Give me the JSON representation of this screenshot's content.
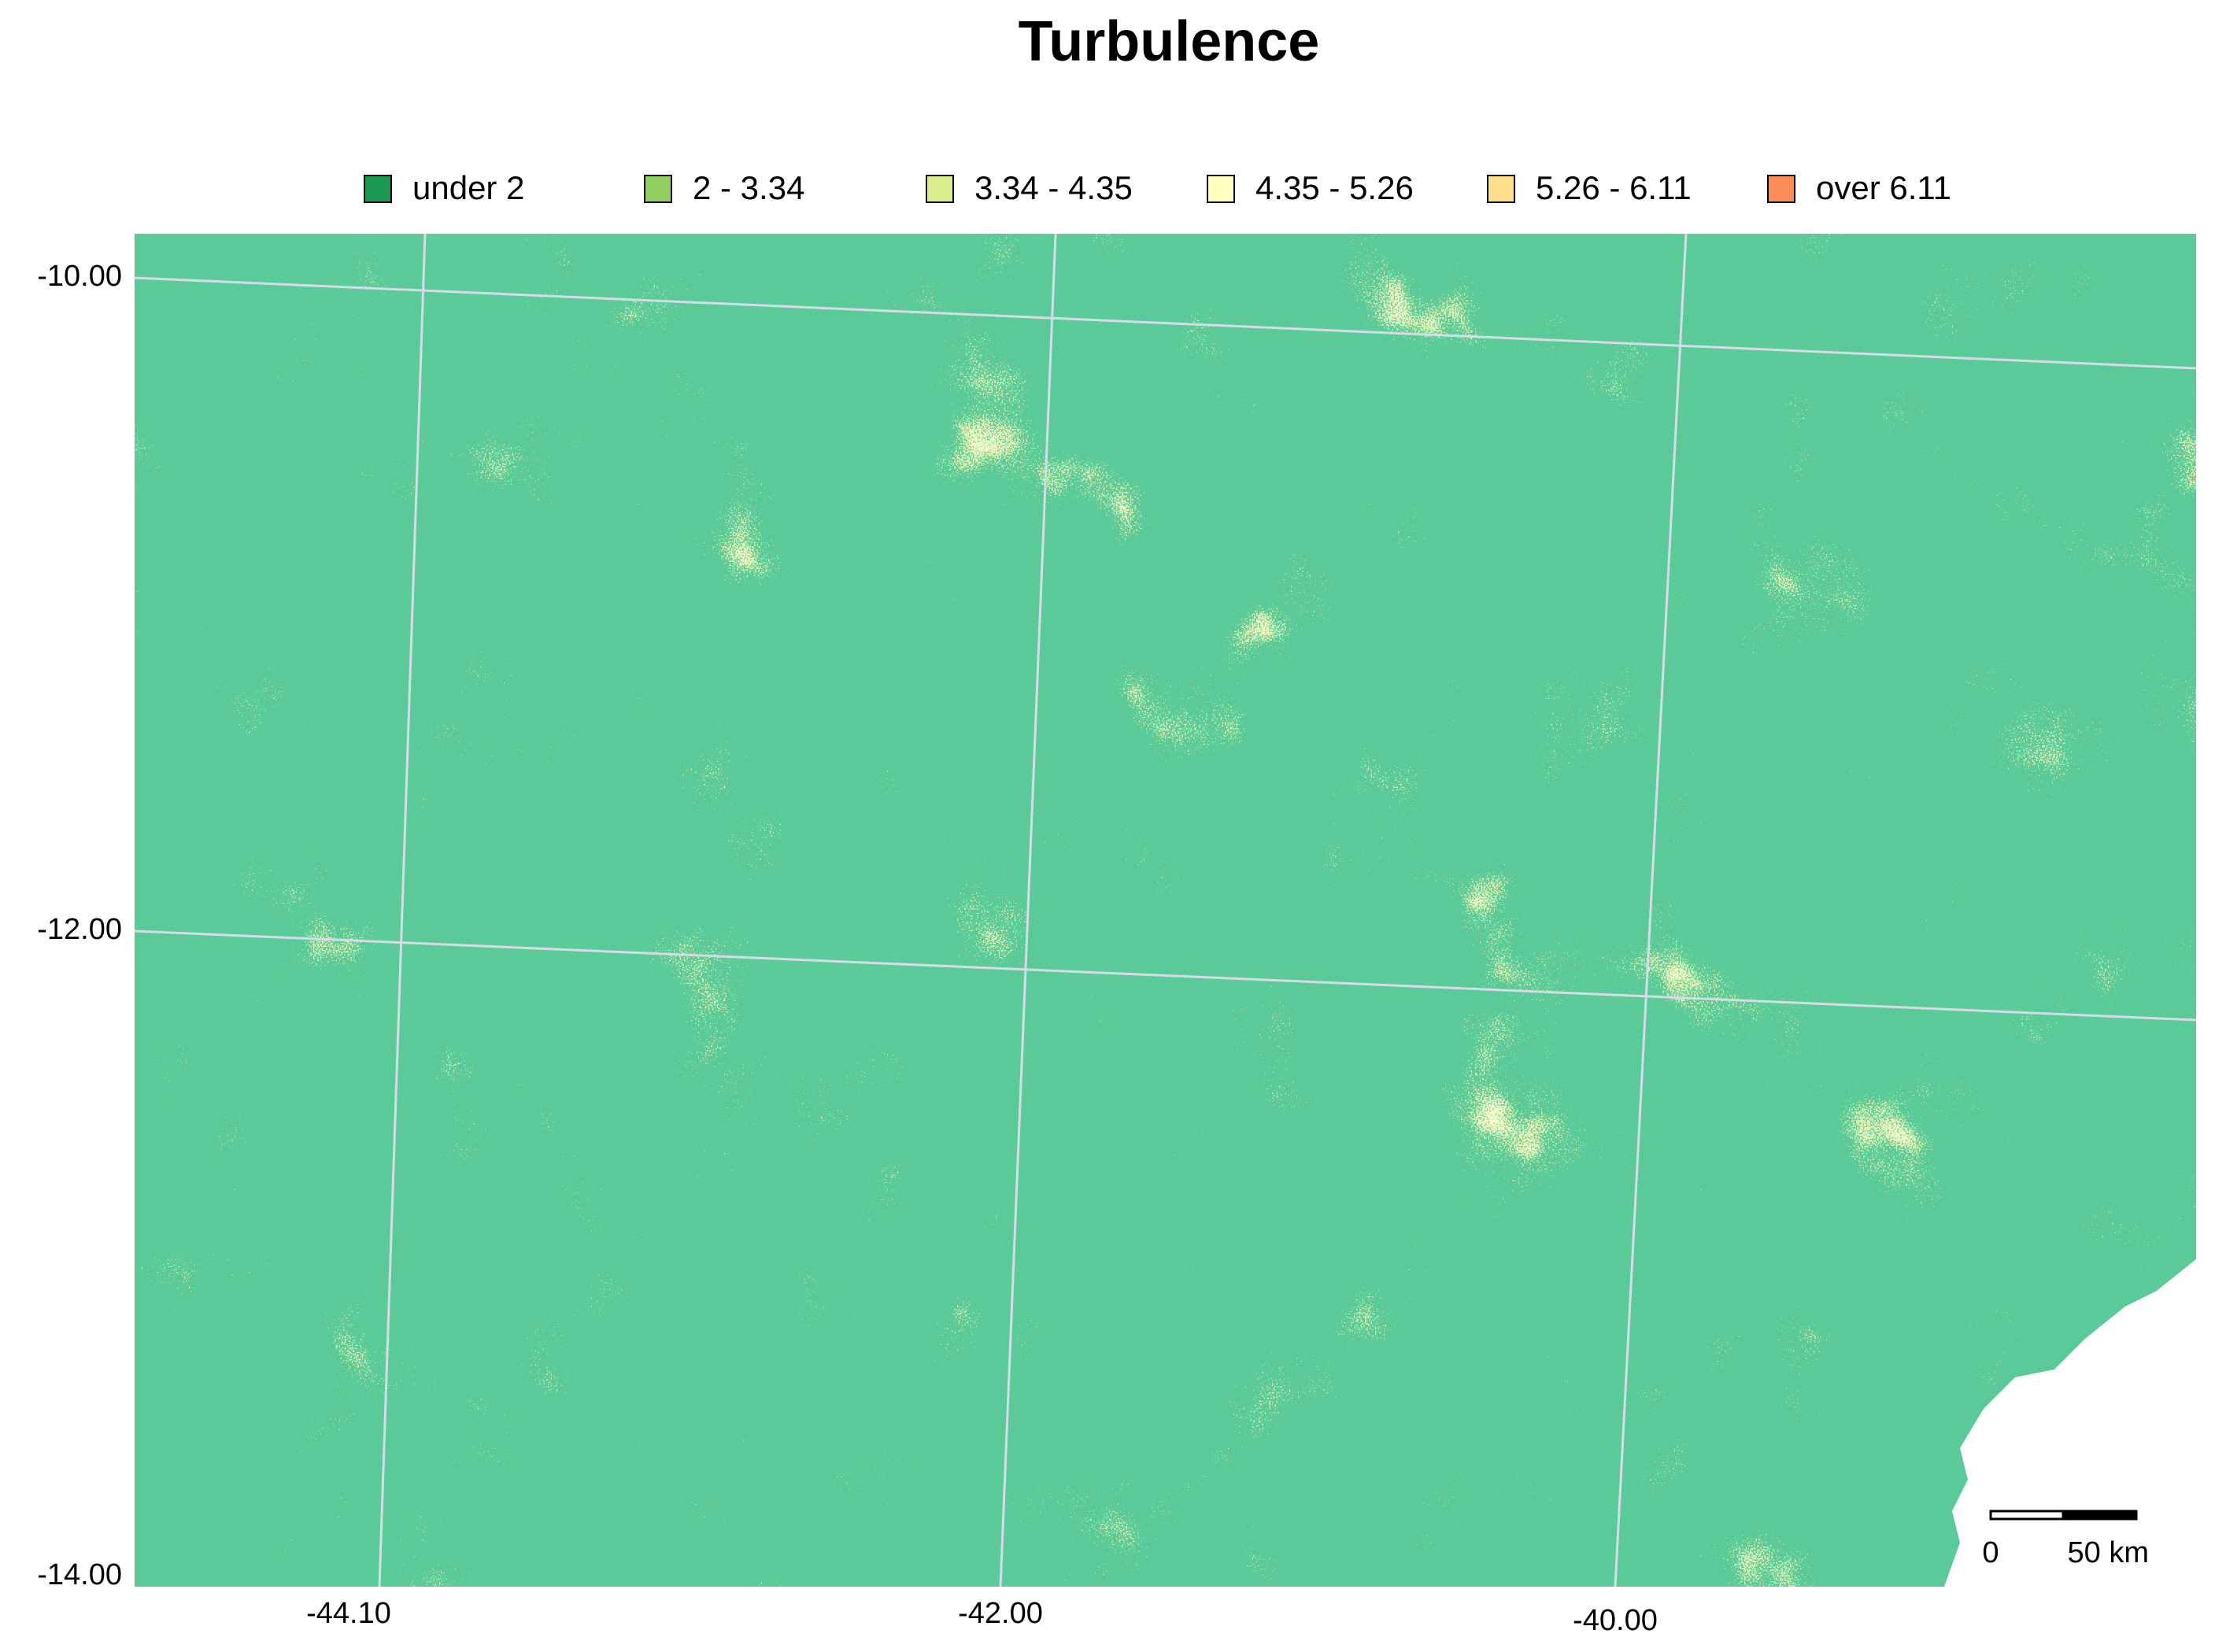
{
  "chart_data": {
    "type": "raster-map",
    "title": "Turbulence",
    "legend": [
      {
        "label": "under 2",
        "color": "#1a9850"
      },
      {
        "label": "2 - 3.34",
        "color": "#91cf60"
      },
      {
        "label": "3.34 - 4.35",
        "color": "#d9ef8b"
      },
      {
        "label": "4.35 - 5.26",
        "color": "#ffffbf"
      },
      {
        "label": "5.26 - 6.11",
        "color": "#fee08b"
      },
      {
        "label": "over 6.11",
        "color": "#fc8d59"
      }
    ],
    "xticks": [
      {
        "value": -44.1,
        "label": "-44.10"
      },
      {
        "value": -42,
        "label": "-42.00"
      },
      {
        "value": -40,
        "label": "-40.00"
      }
    ],
    "yticks": [
      {
        "value": -10,
        "label": "-10.00"
      },
      {
        "value": -12,
        "label": "-12.00"
      },
      {
        "value": -14,
        "label": "-14.00"
      }
    ],
    "scale_bar": {
      "start": "0",
      "end": "50 km"
    },
    "grid": true
  }
}
